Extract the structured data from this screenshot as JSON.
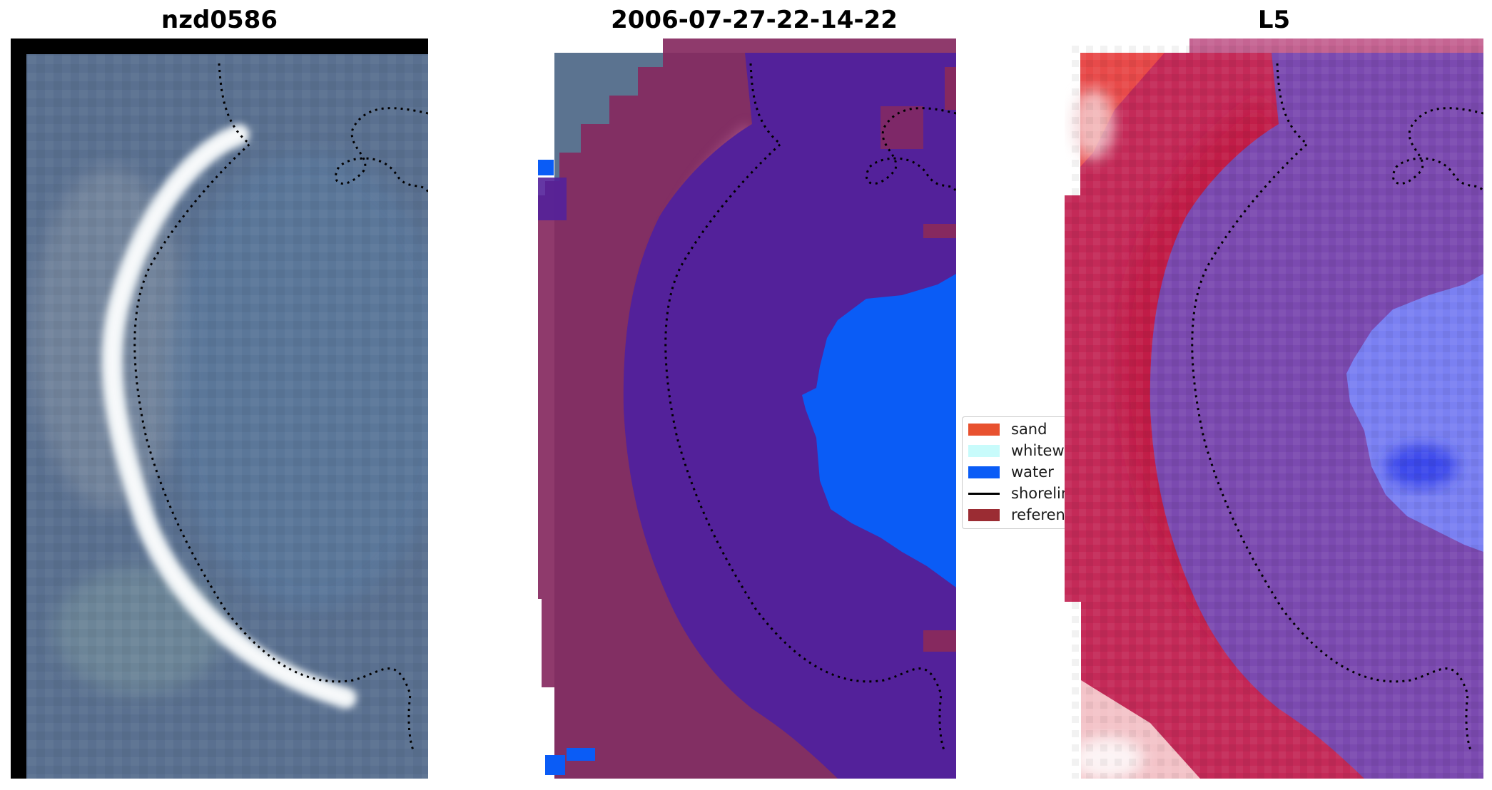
{
  "panels": [
    {
      "title": "nzd0586"
    },
    {
      "title": "2006-07-27-22-14-22"
    },
    {
      "title": "L5"
    }
  ],
  "legend": {
    "items": [
      {
        "label": "sand",
        "color": "#e8512f",
        "kind": "patch"
      },
      {
        "label": "whitewater",
        "color": "#c8fbfb",
        "kind": "patch"
      },
      {
        "label": "water",
        "color": "#0a5cf6",
        "kind": "patch"
      },
      {
        "label": "shoreline",
        "color": "#000000",
        "kind": "line"
      },
      {
        "label": "reference",
        "color": "#9b2c33",
        "kind": "patch"
      }
    ]
  },
  "colors": {
    "imagery_bg": "#546a8c",
    "beach_highlight": "#dde6ea",
    "classified_sand_overlay": "#86295f",
    "classified_water_deep": "#53219a",
    "classified_water_bright": "#0a5cf6",
    "index_sand": "#c21e4c",
    "index_water": "#7b4ab0",
    "index_water_high": "#6e72e8"
  }
}
